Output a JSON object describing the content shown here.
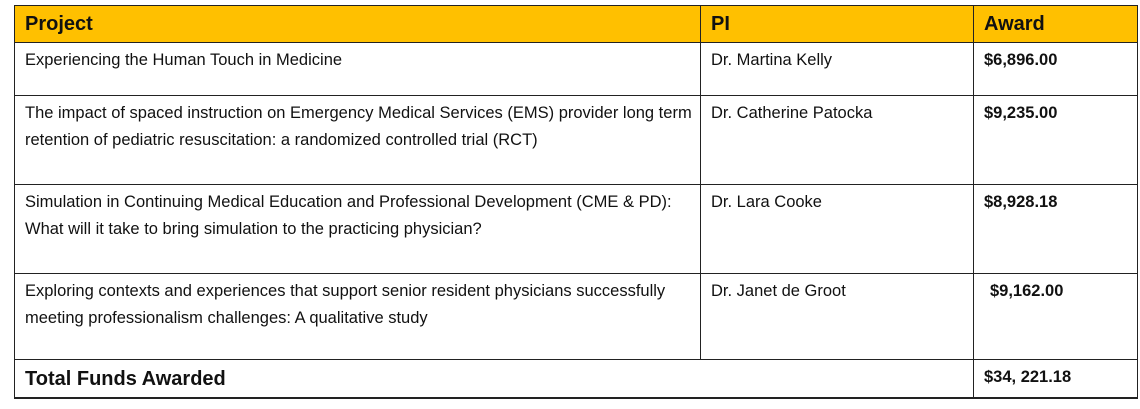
{
  "table": {
    "header_color": "#FFC000",
    "headers": [
      "Project",
      "PI",
      "Award"
    ],
    "rows": [
      {
        "project": "Experiencing the Human Touch in Medicine",
        "pi": "Dr. Martina Kelly",
        "award": "$6,896.00"
      },
      {
        "project": "The impact of spaced instruction on Emergency Medical Services (EMS) provider long term retention of pediatric resuscitation:  a randomized controlled trial (RCT)",
        "pi": "Dr. Catherine Patocka",
        "award": "$9,235.00"
      },
      {
        "project": "Simulation in Continuing Medical Education and Professional Development (CME & PD):  What will it take to bring simulation to the practicing physician?",
        "pi": "Dr. Lara Cooke",
        "award": "$8,928.18"
      },
      {
        "project": "Exploring contexts and experiences that support senior resident physicians successfully meeting professionalism challenges:  A qualitative study",
        "pi": "Dr. Janet de Groot",
        "award": "$9,162.00"
      }
    ],
    "total": {
      "label": "Total Funds Awarded",
      "value": "$34, 221.18"
    }
  }
}
